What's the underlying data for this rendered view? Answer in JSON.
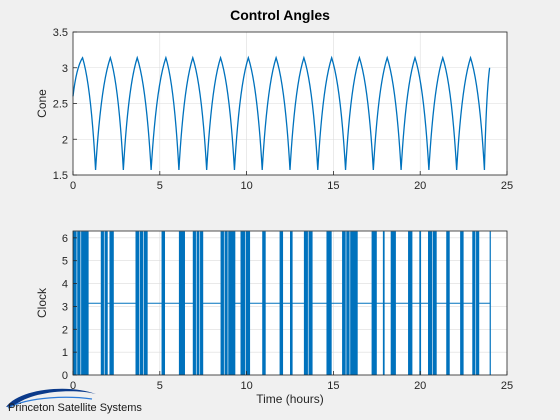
{
  "figure": {
    "title": "Control Angles",
    "logo_text": "Princeton Satellite Systems",
    "colors": {
      "series": "#0072BD",
      "axes_bg": "#ffffff",
      "grid": "#dcdcdc",
      "figure_bg": "#f0f0f0",
      "axis": "#262626"
    }
  },
  "chart_data": [
    {
      "type": "line",
      "title": "Control Angles",
      "xlabel": "",
      "ylabel": "Cone",
      "xlim": [
        0,
        25
      ],
      "ylim": [
        1.5,
        3.5
      ],
      "xticks": [
        0,
        5,
        10,
        15,
        20,
        25
      ],
      "yticks": [
        1.5,
        2,
        2.5,
        3,
        3.5
      ],
      "xtick_labels": [
        "0",
        "5",
        "10",
        "15",
        "20",
        "25"
      ],
      "ytick_labels": [
        "1.5",
        "2",
        "2.5",
        "3",
        "3.5"
      ],
      "grid": true,
      "series": [
        {
          "x": [
            0,
            0.55,
            1.3,
            2.15,
            2.9,
            3.7,
            4.5,
            5.35,
            6.1,
            6.9,
            7.7,
            8.5,
            9.3,
            10.1,
            10.9,
            11.7,
            12.5,
            13.3,
            14.1,
            14.9,
            15.7,
            16.5,
            17.3,
            18.1,
            18.9,
            19.7,
            20.5,
            21.3,
            22.1,
            22.9,
            23.7,
            24.0
          ],
          "y": [
            2.6,
            3.14,
            1.57,
            3.14,
            1.57,
            3.14,
            1.57,
            3.14,
            1.57,
            3.14,
            1.57,
            3.14,
            1.57,
            3.14,
            1.57,
            3.14,
            1.57,
            3.14,
            1.57,
            3.14,
            1.57,
            3.14,
            1.57,
            3.14,
            1.57,
            3.14,
            1.57,
            3.14,
            1.57,
            3.14,
            1.57,
            3.0
          ]
        }
      ]
    },
    {
      "type": "line",
      "xlabel": "Time (hours)",
      "ylabel": "Clock",
      "xlim": [
        0,
        25
      ],
      "ylim": [
        0,
        6.3
      ],
      "xticks": [
        0,
        5,
        10,
        15,
        20,
        25
      ],
      "yticks": [
        0,
        1,
        2,
        3,
        4,
        5,
        6
      ],
      "xtick_labels": [
        "0",
        "5",
        "10",
        "15",
        "20",
        "25"
      ],
      "ytick_labels": [
        "0",
        "1",
        "2",
        "3",
        "4",
        "5",
        "6"
      ],
      "grid": true,
      "baseline_value": 3.14,
      "upper_value": 6.28,
      "lower_value": 0,
      "oscillation_intervals": [
        [
          0.0,
          0.9
        ],
        [
          1.6,
          2.0
        ],
        [
          2.1,
          2.35
        ],
        [
          3.6,
          4.3
        ],
        [
          5.1,
          5.3
        ],
        [
          6.1,
          6.45
        ],
        [
          6.9,
          7.5
        ],
        [
          8.5,
          9.35
        ],
        [
          9.65,
          10.2
        ],
        [
          10.9,
          11.1
        ],
        [
          11.9,
          12.1
        ],
        [
          12.5,
          12.65
        ],
        [
          13.3,
          13.8
        ],
        [
          14.6,
          14.9
        ],
        [
          15.5,
          16.4
        ],
        [
          17.2,
          17.5
        ],
        [
          17.85,
          17.95
        ],
        [
          18.3,
          18.6
        ],
        [
          19.3,
          19.55
        ],
        [
          19.95,
          20.05
        ],
        [
          20.45,
          20.95
        ],
        [
          21.5,
          21.7
        ],
        [
          22.3,
          22.5
        ],
        [
          23.0,
          23.4
        ],
        [
          24.0,
          24.05
        ]
      ]
    }
  ]
}
